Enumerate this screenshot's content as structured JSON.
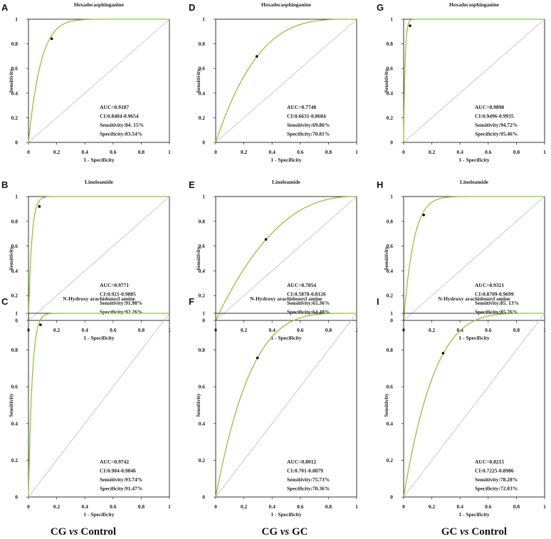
{
  "colors": {
    "curve": "#8cc63f",
    "diagonal": "#bbbbbb",
    "frame": "#333333",
    "point": "#000000"
  },
  "column_groups": [
    {
      "prefix": "CG ",
      "vs": "vs",
      "suffix": " Control"
    },
    {
      "prefix": "CG ",
      "vs": "vs",
      "suffix": " GC"
    },
    {
      "prefix": "GC ",
      "vs": "vs",
      "suffix": " Control"
    }
  ],
  "chart_data": [
    {
      "id": "A",
      "type": "line",
      "title": "Hexadecasphinganine",
      "xlabel": "1 - Specificity",
      "ylabel": "Sensitivity",
      "xlim": [
        0,
        1
      ],
      "ylim": [
        0,
        1
      ],
      "x_ticks": [
        "0",
        "0.2",
        "0.4",
        "0.6",
        "0.8",
        "1"
      ],
      "y_ticks": [
        "0",
        "0.2",
        "0.4",
        "0.6",
        "0.8",
        "1"
      ],
      "auc_value": 0.9187,
      "cutoff_point": [
        0.165,
        0.8415
      ],
      "stats": [
        "AUC=0.9187",
        "CI:0.8404-0.9654",
        "Sensitivity:84. 15%",
        "Specificity:83.54%"
      ]
    },
    {
      "id": "B",
      "type": "line",
      "title": "Linoleamide",
      "xlabel": "1 - Specificity",
      "ylabel": "Sensitivity",
      "xlim": [
        0,
        1
      ],
      "ylim": [
        0,
        1
      ],
      "x_ticks": [
        "0",
        "0.2",
        "0.4",
        "0.6",
        "0.8",
        "1"
      ],
      "y_ticks": [
        "0",
        "0.2",
        "0.4",
        "0.6",
        "0.8",
        "1"
      ],
      "auc_value": 0.9771,
      "cutoff_point": [
        0.0774,
        0.9198
      ],
      "stats": [
        "AUC=0.9771",
        "CI:0.921-0.9885",
        "Sensitivity:91.98%",
        "Specificity:92.26%"
      ]
    },
    {
      "id": "C",
      "type": "line",
      "title": "N-Hydroxy arachidonoyl amine",
      "xlabel": "1 - Specificity",
      "ylabel": "Sensitivity",
      "xlim": [
        0,
        1
      ],
      "ylim": [
        0,
        1
      ],
      "x_ticks": [
        "0",
        "0.2",
        "0.4",
        "0.6",
        "0.8",
        "1"
      ],
      "y_ticks": [
        "0",
        "0.2",
        "0.4",
        "0.6",
        "0.8",
        "1"
      ],
      "auc_value": 0.9742,
      "cutoff_point": [
        0.0853,
        0.9374
      ],
      "stats": [
        "AUC=0.9742",
        "CI:0.904-0.9846",
        "Sensitivity:93.74%",
        "Specificity:91.47%"
      ]
    },
    {
      "id": "D",
      "type": "line",
      "title": "Hexadecasphinganine",
      "xlabel": "1 - Specificity",
      "ylabel": "Sensitivity",
      "xlim": [
        0,
        1
      ],
      "ylim": [
        0,
        1
      ],
      "x_ticks": [
        "0",
        "0.2",
        "0.4",
        "0.6",
        "0.8",
        "1"
      ],
      "y_ticks": [
        "0",
        "0.2",
        "0.4",
        "0.6",
        "0.8",
        "1"
      ],
      "auc_value": 0.7748,
      "cutoff_point": [
        0.2919,
        0.6986
      ],
      "stats": [
        "AUC=0.7748",
        "CI:0.6631-0.8604",
        "Sensitivity:69.86%",
        "Specificity:70.81%"
      ]
    },
    {
      "id": "E",
      "type": "line",
      "title": "Linoleamide",
      "xlabel": "1 - Specificity",
      "ylabel": "Sensitivity",
      "xlim": [
        0,
        1
      ],
      "ylim": [
        0,
        1
      ],
      "x_ticks": [
        "0",
        "0.2",
        "0.4",
        "0.6",
        "0.8",
        "1"
      ],
      "y_ticks": [
        "0",
        "0.2",
        "0.4",
        "0.6",
        "0.8",
        "1"
      ],
      "auc_value": 0.7054,
      "cutoff_point": [
        0.356,
        0.6536
      ],
      "stats": [
        "AUC=0.7054",
        "CI:0.5878-0.8126",
        "Sensitivity:65.36%",
        "Specificity:64.40%"
      ]
    },
    {
      "id": "F",
      "type": "line",
      "title": "N-Hydroxy arachidonoyl amine",
      "xlabel": "1 - Specificity",
      "ylabel": "Sensitivity",
      "xlim": [
        0,
        1
      ],
      "ylim": [
        0,
        1
      ],
      "x_ticks": [
        "0",
        "0.2",
        "0.4",
        "0.6",
        "0.8",
        "1"
      ],
      "y_ticks": [
        "0",
        "0.2",
        "0.4",
        "0.6",
        "0.8",
        "1"
      ],
      "auc_value": 0.8012,
      "cutoff_point": [
        0.2964,
        0.7573
      ],
      "stats": [
        "AUC=0.8012",
        "CI:0.701-0.8879",
        "Sensitivity:75.73%",
        "Specificity:70.36%"
      ]
    },
    {
      "id": "G",
      "type": "line",
      "title": "Hexadecasphinganine",
      "xlabel": "1 - Specificity",
      "ylabel": "Sensitivity",
      "xlim": [
        0,
        1
      ],
      "ylim": [
        0,
        1
      ],
      "x_ticks": [
        "0",
        "0.2",
        "0.4",
        "0.6",
        "0.8",
        "1"
      ],
      "y_ticks": [
        "0",
        "0.2",
        "0.4",
        "0.6",
        "0.8",
        "1"
      ],
      "auc_value": 0.9898,
      "cutoff_point": [
        0.0454,
        0.9472
      ],
      "stats": [
        "AUC=0.9898",
        "CI:0.9496-0.9935",
        "Sensitivity:94.72%",
        "Specificity:95.46%"
      ]
    },
    {
      "id": "H",
      "type": "line",
      "title": "Linoleamide",
      "xlabel": "1 - Specificity",
      "ylabel": "Sensitivity",
      "xlim": [
        0,
        1
      ],
      "ylim": [
        0,
        1
      ],
      "x_ticks": [
        "0",
        "0.2",
        "0.4",
        "0.6",
        "0.8",
        "1"
      ],
      "y_ticks": [
        "0",
        "0.2",
        "0.4",
        "0.6",
        "0.8",
        "1"
      ],
      "auc_value": 0.9321,
      "cutoff_point": [
        0.1424,
        0.8513
      ],
      "stats": [
        "AUC=0.9321",
        "CI:0.8709-0.9699",
        "Sensitivity:85. 13%",
        "Specificity:85.76%"
      ]
    },
    {
      "id": "I",
      "type": "line",
      "title": "N-Hydroxy arachidonoyl amine",
      "xlabel": "1 - Specificity",
      "ylabel": "Sensitivity",
      "xlim": [
        0,
        1
      ],
      "ylim": [
        0,
        1
      ],
      "x_ticks": [
        "0",
        "0.2",
        "0.4",
        "0.6",
        "0.8",
        "1"
      ],
      "y_ticks": [
        "0",
        "0.2",
        "0.4",
        "0.6",
        "0.8",
        "1"
      ],
      "auc_value": 0.8215,
      "cutoff_point": [
        0.2797,
        0.7828
      ],
      "stats": [
        "AUC=0.8215",
        "CI:0.7225-0.8986",
        "Sensitivity:78.28%",
        "Specificity:72.03%"
      ]
    }
  ]
}
